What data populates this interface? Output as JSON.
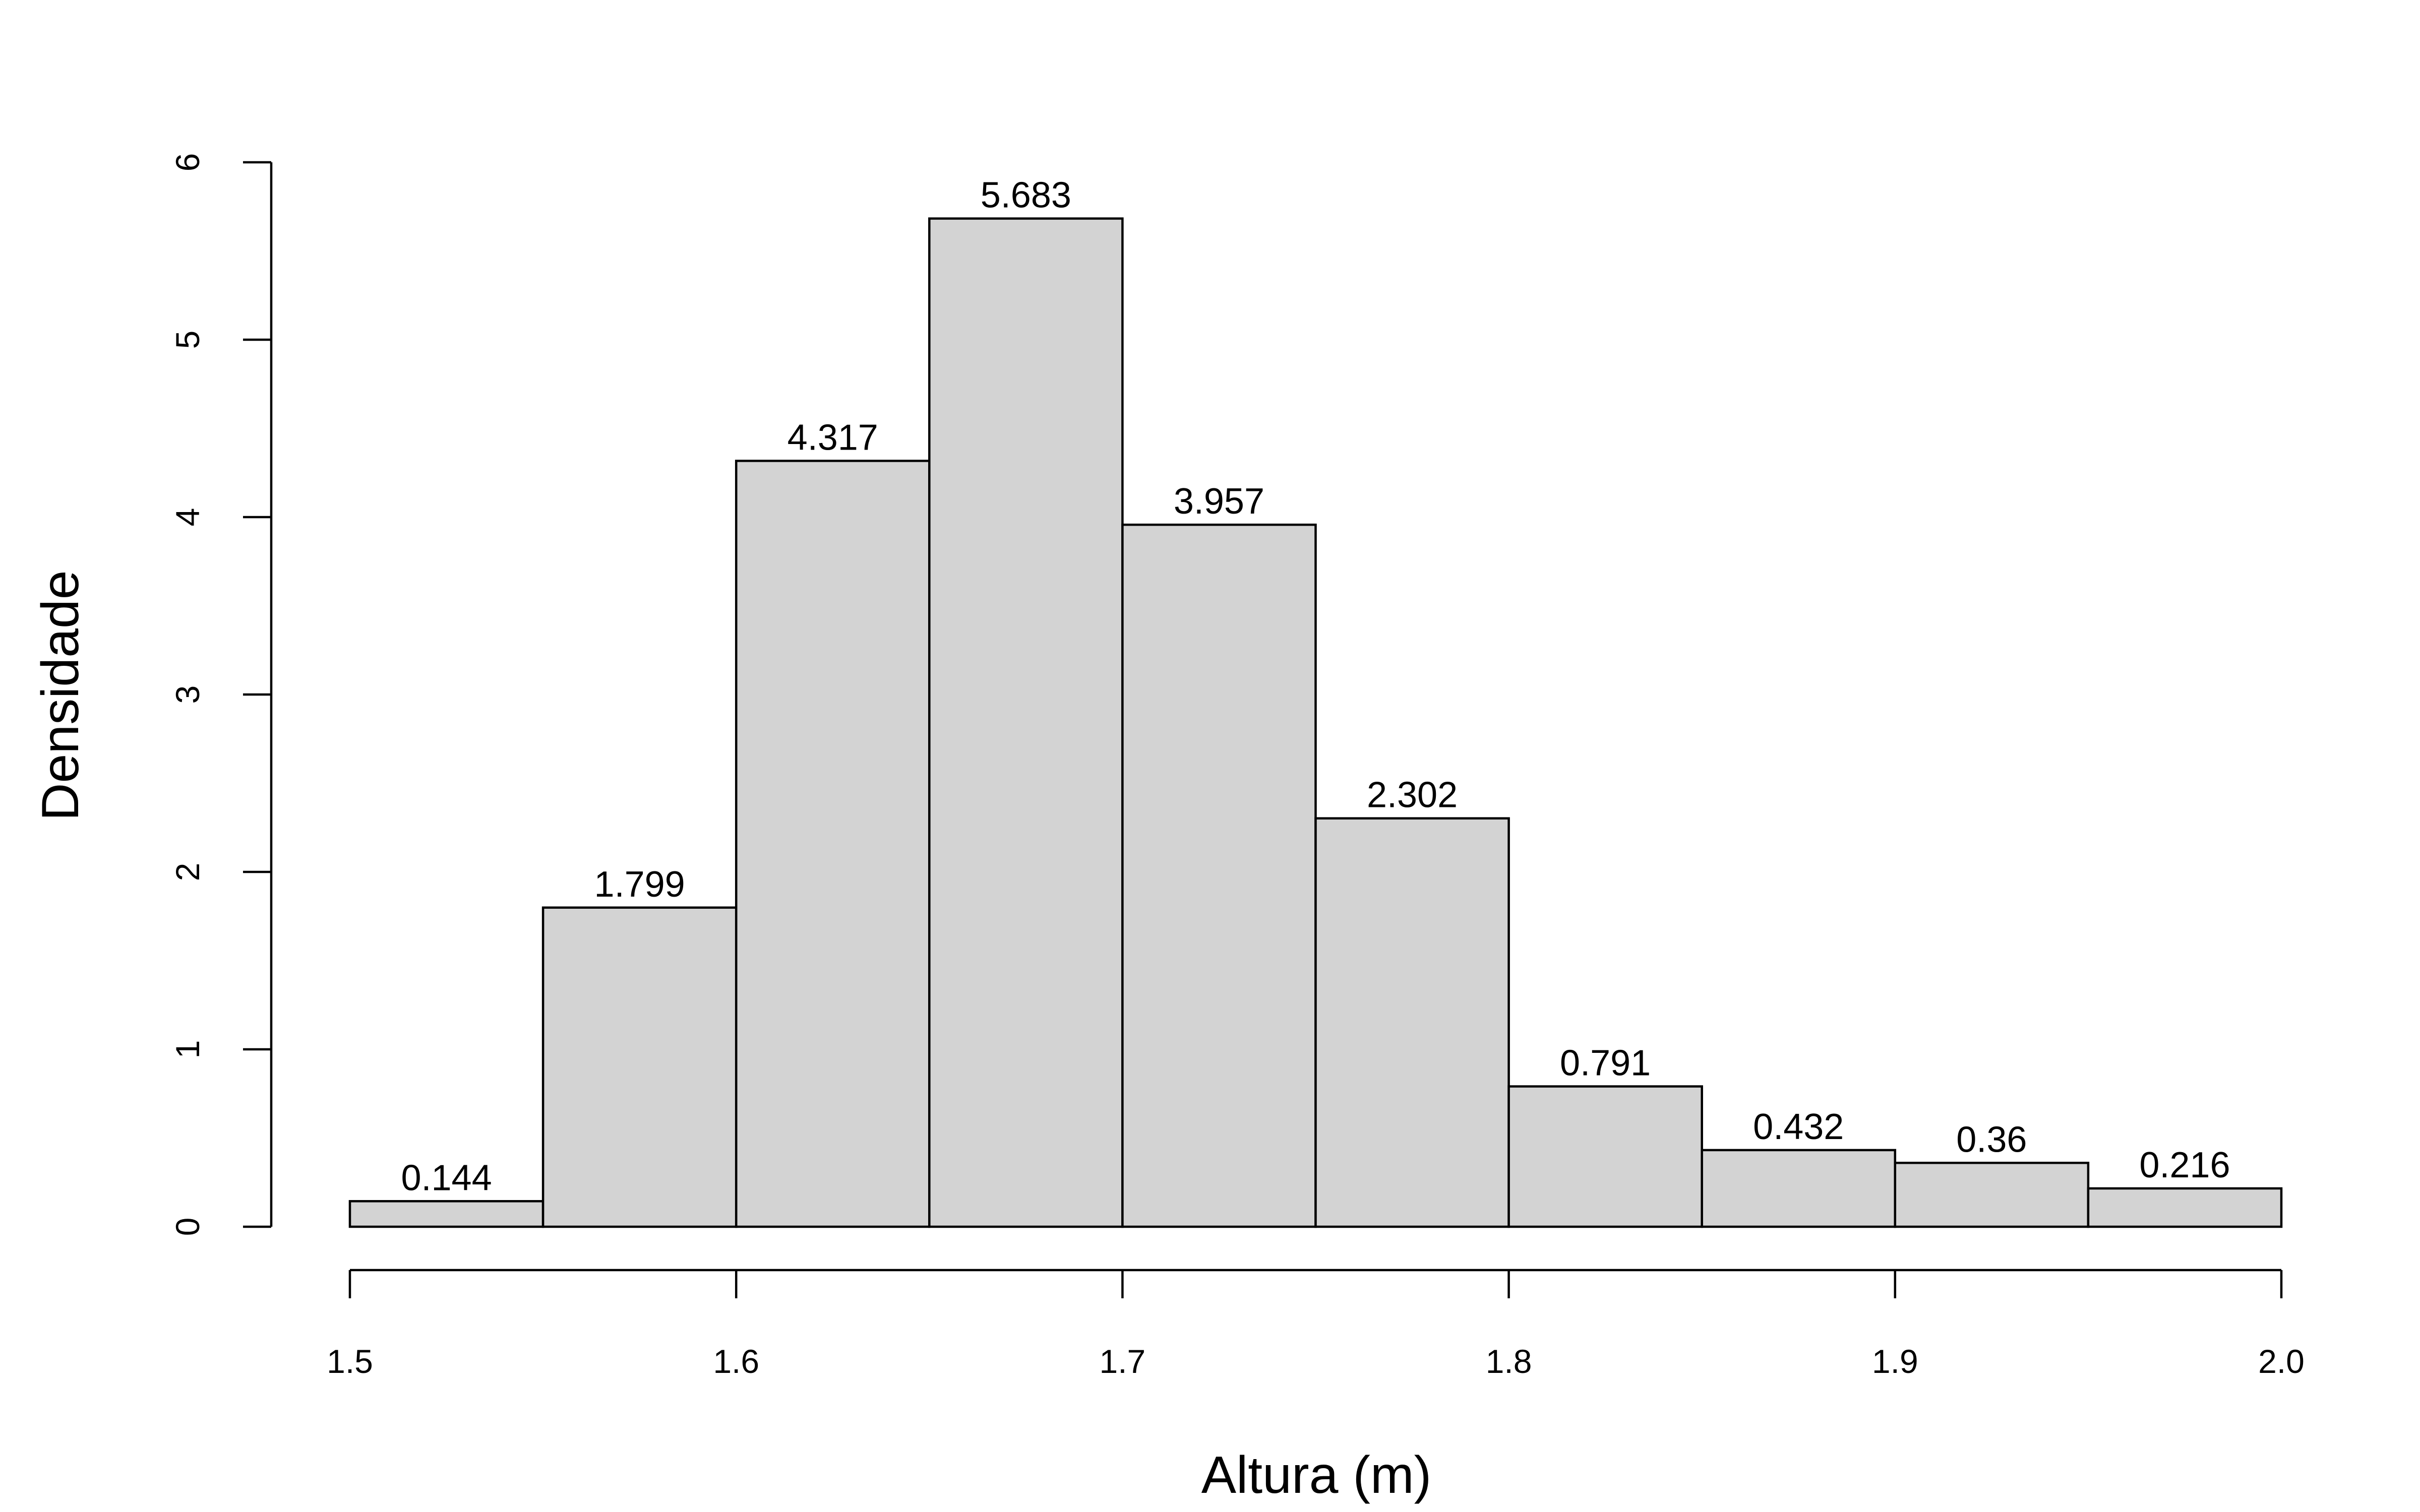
{
  "chart_data": {
    "type": "bar",
    "subtype": "histogram",
    "title": "",
    "xlabel": "Altura (m)",
    "ylabel": "Densidade",
    "bins": [
      {
        "from": 1.5,
        "to": 1.55,
        "value": 0.144,
        "label": "0.144"
      },
      {
        "from": 1.55,
        "to": 1.6,
        "value": 1.799,
        "label": "1.799"
      },
      {
        "from": 1.6,
        "to": 1.65,
        "value": 4.317,
        "label": "4.317"
      },
      {
        "from": 1.65,
        "to": 1.7,
        "value": 5.683,
        "label": "5.683"
      },
      {
        "from": 1.7,
        "to": 1.75,
        "value": 3.957,
        "label": "3.957"
      },
      {
        "from": 1.75,
        "to": 1.8,
        "value": 2.302,
        "label": "2.302"
      },
      {
        "from": 1.8,
        "to": 1.85,
        "value": 0.791,
        "label": "0.791"
      },
      {
        "from": 1.85,
        "to": 1.9,
        "value": 0.432,
        "label": "0.432"
      },
      {
        "from": 1.9,
        "to": 1.95,
        "value": 0.36,
        "label": "0.36"
      },
      {
        "from": 1.95,
        "to": 2.0,
        "value": 0.216,
        "label": "0.216"
      }
    ],
    "xlim": [
      1.5,
      2.0
    ],
    "ylim": [
      0,
      6
    ],
    "xticks": [
      {
        "value": 1.5,
        "label": "1.5"
      },
      {
        "value": 1.6,
        "label": "1.6"
      },
      {
        "value": 1.7,
        "label": "1.7"
      },
      {
        "value": 1.8,
        "label": "1.8"
      },
      {
        "value": 1.9,
        "label": "1.9"
      },
      {
        "value": 2.0,
        "label": "2.0"
      }
    ],
    "yticks": [
      {
        "value": 0,
        "label": "0"
      },
      {
        "value": 1,
        "label": "1"
      },
      {
        "value": 2,
        "label": "2"
      },
      {
        "value": 3,
        "label": "3"
      },
      {
        "value": 4,
        "label": "4"
      },
      {
        "value": 5,
        "label": "5"
      },
      {
        "value": 6,
        "label": "6"
      }
    ],
    "grid": false,
    "legend": "none",
    "bar_color": "#d3d3d3",
    "edge_color": "#000000"
  }
}
